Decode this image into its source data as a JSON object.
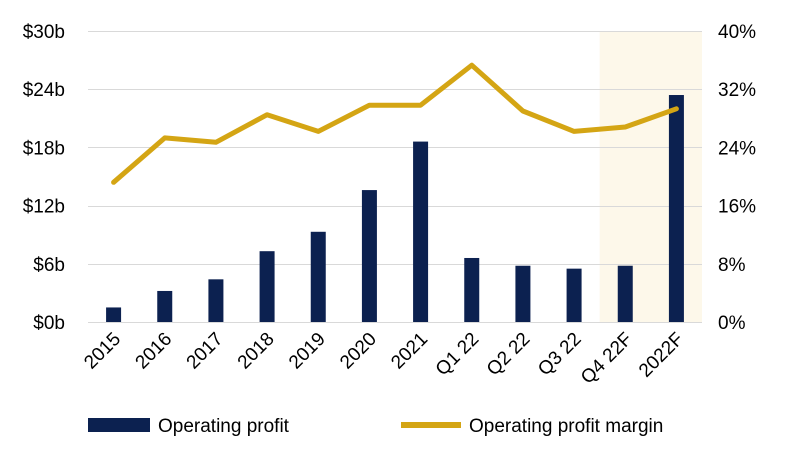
{
  "chart_data": {
    "type": "bar",
    "title": "",
    "xlabel": "",
    "ylabel": "",
    "categories": [
      "2015",
      "2016",
      "2017",
      "2018",
      "2019",
      "2020",
      "2021",
      "Q1 22",
      "Q2 22",
      "Q3 22",
      "Q4 22F",
      "2022F"
    ],
    "series": [
      {
        "name": "Operating profit",
        "type": "bar",
        "axis": "left",
        "color": "#0c2150",
        "values": [
          1.5,
          3.2,
          4.4,
          7.3,
          9.3,
          13.6,
          18.6,
          6.6,
          5.8,
          5.5,
          5.8,
          23.4
        ]
      },
      {
        "name": "Operating profit margin",
        "type": "line",
        "axis": "right",
        "color": "#d4a514",
        "values": [
          19.2,
          25.3,
          24.7,
          28.5,
          26.2,
          29.8,
          29.8,
          35.3,
          29.0,
          26.2,
          26.8,
          29.3
        ]
      }
    ],
    "y_left": {
      "range": [
        0,
        30
      ],
      "ticks": [
        0,
        6,
        12,
        18,
        24,
        30
      ],
      "tick_labels": [
        "$0b",
        "$6b",
        "$12b",
        "$18b",
        "$24b",
        "$30b"
      ]
    },
    "y_right": {
      "range": [
        0,
        40
      ],
      "ticks": [
        0,
        8,
        16,
        24,
        32,
        40
      ],
      "tick_labels": [
        "0%",
        "8%",
        "16%",
        "24%",
        "32%",
        "40%"
      ]
    },
    "forecast_highlight": {
      "categories": [
        "Q4 22F",
        "2022F"
      ],
      "color": "#fdf8ea"
    },
    "grid": true,
    "gridline_color": "#d9d9d9",
    "legend": {
      "position": "bottom",
      "entries": [
        "Operating profit",
        "Operating profit margin"
      ]
    }
  }
}
